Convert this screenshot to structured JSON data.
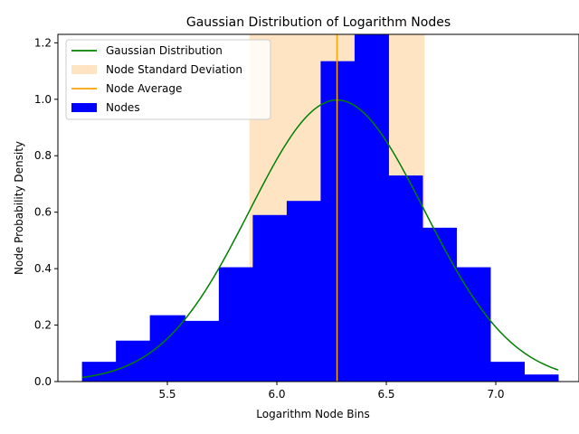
{
  "chart_data": {
    "type": "bar",
    "title": "Gaussian Distribution of Logarithm Nodes",
    "xlabel": "Logarithm Node Bins",
    "ylabel": "Node Probability Density",
    "xlim": [
      5.0,
      7.38
    ],
    "ylim": [
      0,
      1.23
    ],
    "xticks": [
      5.5,
      6.0,
      6.5,
      7.0
    ],
    "yticks": [
      0.0,
      0.2,
      0.4,
      0.6,
      0.8,
      1.0,
      1.2
    ],
    "grid": false,
    "legend_position": "top-left",
    "histogram": {
      "name": "Nodes",
      "color": "#0000ff",
      "bin_edges": [
        5.11,
        5.265,
        5.42,
        5.58,
        5.735,
        5.89,
        6.045,
        6.2,
        6.355,
        6.51,
        6.665,
        6.82,
        6.975,
        7.13,
        7.285
      ],
      "values": [
        0.07,
        0.145,
        0.235,
        0.215,
        0.405,
        0.59,
        0.64,
        1.135,
        1.235,
        0.73,
        0.545,
        0.405,
        0.07,
        0.025
      ]
    },
    "gaussian": {
      "name": "Gaussian Distribution",
      "color": "#008000",
      "mean": 6.275,
      "std": 0.4,
      "x_range": [
        5.11,
        7.285
      ]
    },
    "average": {
      "name": "Node Average",
      "color": "#ffa500",
      "x": 6.275
    },
    "std_band": {
      "name": "Node Standard Deviation",
      "color": "#ffe4c4",
      "x_range": [
        5.875,
        6.675
      ]
    },
    "legend": [
      "Gaussian Distribution",
      "Node Standard Deviation",
      "Node Average",
      "Nodes"
    ]
  }
}
